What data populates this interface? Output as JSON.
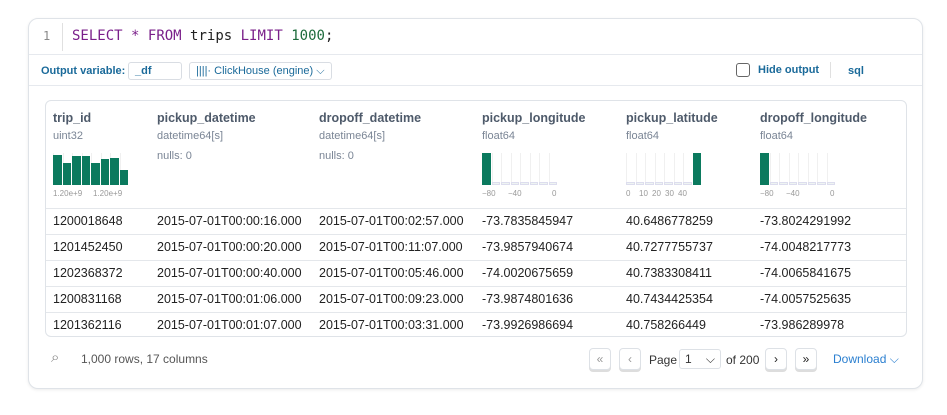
{
  "editor": {
    "line_number": "1",
    "tokens": [
      {
        "t": "SELECT",
        "c": "kw"
      },
      {
        "t": " "
      },
      {
        "t": "*",
        "c": "kw"
      },
      {
        "t": " "
      },
      {
        "t": "FROM",
        "c": "kw"
      },
      {
        "t": " trips "
      },
      {
        "t": "LIMIT",
        "c": "kw"
      },
      {
        "t": " "
      },
      {
        "t": "1000",
        "c": "num"
      },
      {
        "t": ";"
      }
    ]
  },
  "toolbar": {
    "output_variable_label": "Output variable:",
    "output_variable_value": "_df",
    "engine": "ClickHouse (engine)",
    "hide_output": "Hide output",
    "hide_output_checked": false,
    "language": "sql"
  },
  "table": {
    "columns": [
      {
        "name": "trip_id",
        "type": "uint32",
        "hist": {
          "bars": [
            0.95,
            0.7,
            0.9,
            0.9,
            0.68,
            0.8,
            0.85,
            0.48
          ],
          "ticks": [
            "1.20e+9",
            "1.20e+9"
          ]
        }
      },
      {
        "name": "pickup_datetime",
        "type": "datetime64[s]",
        "nulls": "nulls: 0"
      },
      {
        "name": "dropoff_datetime",
        "type": "datetime64[s]",
        "nulls": "nulls: 0"
      },
      {
        "name": "pickup_longitude",
        "type": "float64",
        "hist": {
          "bars": [
            1,
            0,
            0,
            0,
            0,
            0,
            0,
            0.05
          ],
          "ticks": [
            "−80",
            "−40",
            "0"
          ]
        }
      },
      {
        "name": "pickup_latitude",
        "type": "float64",
        "hist": {
          "bars": [
            0.05,
            0,
            0,
            0,
            0,
            0,
            0,
            1
          ],
          "ticks": [
            "0",
            "10",
            "20",
            "30",
            "40"
          ]
        }
      },
      {
        "name": "dropoff_longitude",
        "type": "float64",
        "hist": {
          "bars": [
            1,
            0,
            0,
            0,
            0,
            0,
            0,
            0.05
          ],
          "ticks": [
            "−80",
            "−40",
            "0"
          ]
        }
      }
    ],
    "rows": [
      [
        "1200018648",
        "2015-07-01T00:00:16.000",
        "2015-07-01T00:02:57.000",
        "-73.7835845947",
        "40.6486778259",
        "-73.8024291992"
      ],
      [
        "1201452450",
        "2015-07-01T00:00:20.000",
        "2015-07-01T00:11:07.000",
        "-73.9857940674",
        "40.7277755737",
        "-74.0048217773"
      ],
      [
        "1202368372",
        "2015-07-01T00:00:40.000",
        "2015-07-01T00:05:46.000",
        "-74.0020675659",
        "40.7383308411",
        "-74.0065841675"
      ],
      [
        "1200831168",
        "2015-07-01T00:01:06.000",
        "2015-07-01T00:09:23.000",
        "-73.9874801636",
        "40.7434425354",
        "-74.0057525635"
      ],
      [
        "1201362116",
        "2015-07-01T00:01:07.000",
        "2015-07-01T00:03:31.000",
        "-73.9926986694",
        "40.758266449",
        "-73.986289978"
      ]
    ]
  },
  "footer": {
    "summary": "1,000 rows, 17 columns",
    "page_label": "Page",
    "page_value": "1",
    "page_total": "of 200",
    "download": "Download"
  },
  "colors": {
    "accent": "#1a6a9a",
    "bar": "#0b7a5e"
  }
}
